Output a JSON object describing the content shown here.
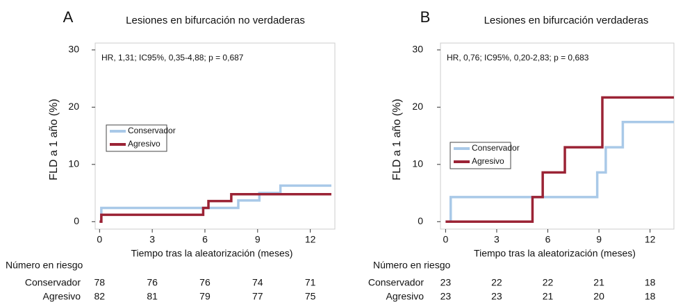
{
  "chart_data": [
    {
      "type": "line",
      "step": "post",
      "panel": "A",
      "title": "Lesiones en bifurcación no verdaderas",
      "annotation": "HR, 1,31; IC95%, 0,35-4,88; p = 0,687",
      "x_label": "Tiempo tras la aleatorización (meses)",
      "y_label": "FLD a 1 año (%)",
      "xlim": [
        -0.25,
        13.4
      ],
      "ylim": [
        -1.3,
        31.2
      ],
      "xticks": [
        0,
        3,
        6,
        9,
        12
      ],
      "yticks": [
        0,
        10,
        20,
        30
      ],
      "legend": "center-left",
      "series": [
        {
          "name": "Conservador",
          "color": "#a9c9e8",
          "x": [
            0,
            0.1,
            7.9,
            9.1,
            10.3,
            13.2
          ],
          "values": [
            0,
            2.4,
            3.7,
            5.0,
            6.3,
            6.3
          ]
        },
        {
          "name": "Agresivo",
          "color": "#9b2335",
          "x": [
            0,
            0.1,
            5.9,
            6.2,
            7.5,
            13.2
          ],
          "values": [
            0,
            1.2,
            2.4,
            3.6,
            4.8,
            4.8
          ]
        }
      ],
      "risk_table": {
        "title": "Número en riesgo",
        "rows": [
          {
            "name": "Conservador",
            "values": [
              78,
              76,
              76,
              74,
              71
            ]
          },
          {
            "name": "Agresivo",
            "values": [
              82,
              81,
              79,
              77,
              75
            ]
          }
        ]
      }
    },
    {
      "type": "line",
      "step": "post",
      "panel": "B",
      "title": "Lesiones en bifurcación verdaderas",
      "annotation": "HR, 0,76; IC95%, 0,20-2,83; p = 0,683",
      "x_label": "Tiempo tras la aleatorización (meses)",
      "y_label": "FLD a 1 año (%)",
      "xlim": [
        -0.3,
        13.4
      ],
      "ylim": [
        -1.3,
        31.2
      ],
      "xticks": [
        0,
        3,
        6,
        9,
        12
      ],
      "yticks": [
        0,
        10,
        20,
        30
      ],
      "legend": "center-left",
      "series": [
        {
          "name": "Conservador",
          "color": "#a9c9e8",
          "x": [
            0,
            0.3,
            8.9,
            9.4,
            10.4,
            13.4
          ],
          "values": [
            0,
            4.3,
            8.6,
            13.0,
            17.4,
            17.4
          ]
        },
        {
          "name": "Agresivo",
          "color": "#9b2335",
          "x": [
            0,
            5.1,
            5.7,
            7.0,
            9.2,
            13.4
          ],
          "values": [
            0,
            4.3,
            8.6,
            13.0,
            21.7,
            21.7
          ]
        }
      ],
      "risk_table": {
        "title": "Número en riesgo",
        "rows": [
          {
            "name": "Conservador",
            "values": [
              23,
              22,
              22,
              21,
              18
            ]
          },
          {
            "name": "Agresivo",
            "values": [
              23,
              23,
              21,
              20,
              18
            ]
          }
        ]
      }
    }
  ]
}
